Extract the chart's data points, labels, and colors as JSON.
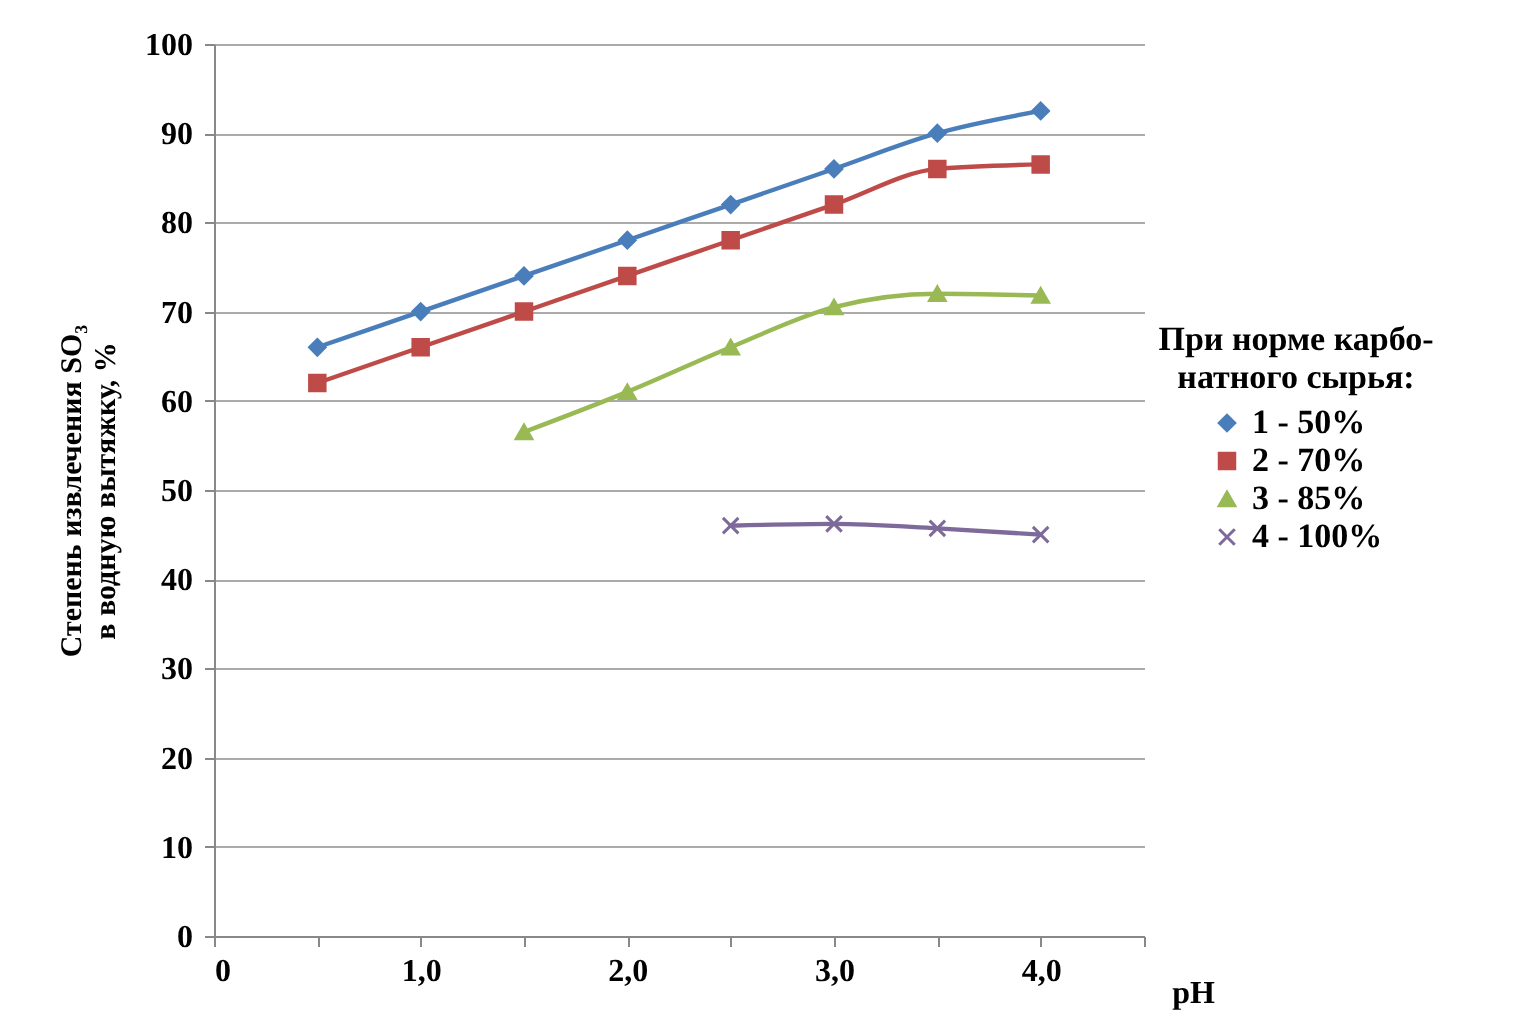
{
  "chart_data": {
    "type": "line",
    "ylabel": "Степень извлечения SO₃\nв водную вытяжку, %",
    "xlabel": "pH",
    "legend_title": "При норме карбо-\nнатного сырья:",
    "xlim": [
      0,
      4.5
    ],
    "xticks": [
      0,
      {
        "value": 0.5,
        "label": null
      },
      {
        "value": 1,
        "label": "1,0"
      },
      {
        "value": 1.5,
        "label": null
      },
      {
        "value": 2,
        "label": "2,0"
      },
      {
        "value": 2.5,
        "label": null
      },
      {
        "value": 3,
        "label": "3,0"
      },
      {
        "value": 3.5,
        "label": null
      },
      {
        "value": 4,
        "label": "4,0"
      },
      {
        "value": 4.5,
        "label": null
      }
    ],
    "ylim": [
      0,
      100
    ],
    "yticks": [
      0,
      10,
      20,
      30,
      40,
      50,
      60,
      70,
      80,
      90,
      100
    ],
    "grid": "y",
    "legend": "right",
    "series": [
      {
        "name": "1 - 50%",
        "color": "#4a7ebb",
        "marker": "diamond",
        "x": [
          0.5,
          1,
          1.5,
          2,
          2.5,
          3,
          3.5,
          4
        ],
        "values": [
          66,
          70,
          74,
          78,
          82,
          86,
          90,
          92.5
        ]
      },
      {
        "name": "2 - 70%",
        "color": "#be4b48",
        "marker": "square",
        "x": [
          0.5,
          1,
          1.5,
          2,
          2.5,
          3,
          3.5,
          4
        ],
        "values": [
          62,
          66,
          70,
          74,
          78,
          82,
          86,
          86.5
        ]
      },
      {
        "name": "3 - 85%",
        "color": "#98b954",
        "marker": "triangle",
        "x": [
          1.5,
          2,
          2.5,
          3,
          3.5,
          4
        ],
        "values": [
          56.5,
          61,
          66,
          70.5,
          72,
          71.8
        ]
      },
      {
        "name": "4 - 100%",
        "color": "#7d6a9a",
        "marker": "cross",
        "x": [
          2.5,
          3,
          3.5,
          4
        ],
        "values": [
          46,
          46.2,
          45.7,
          45
        ]
      }
    ]
  }
}
